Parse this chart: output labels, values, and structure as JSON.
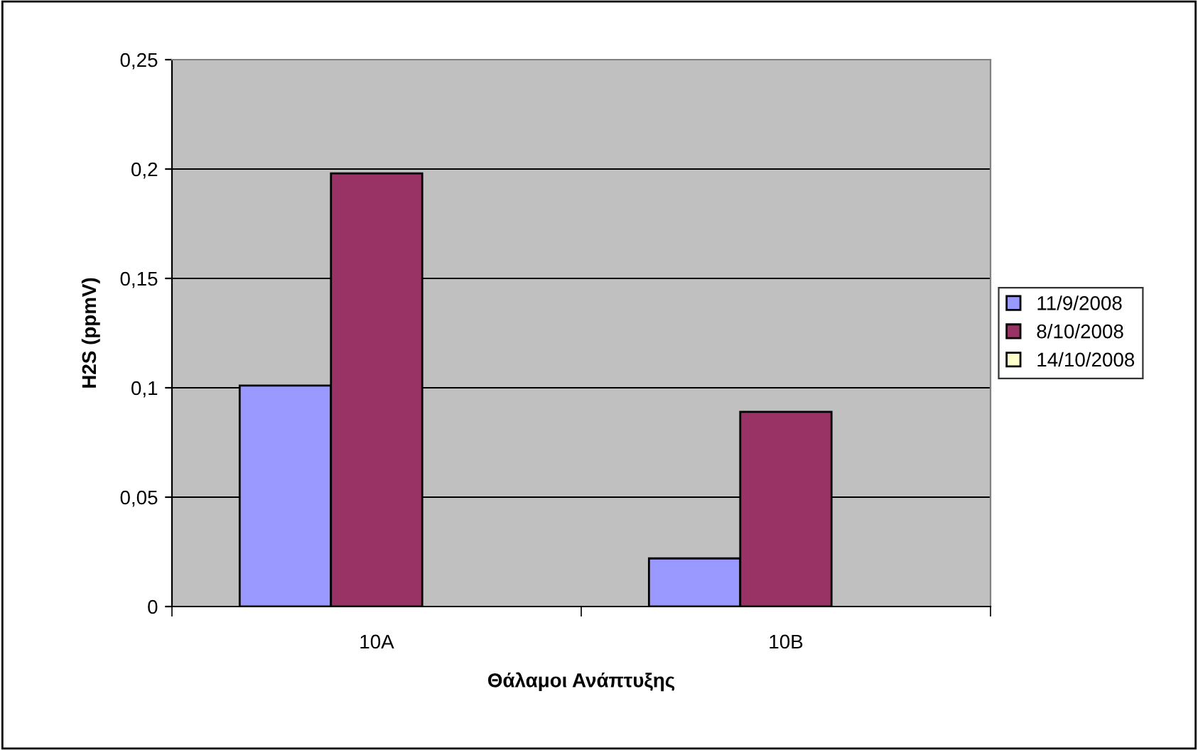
{
  "chart_data": {
    "type": "bar",
    "xlabel": "Θάλαμοι Ανάπτυξης",
    "ylabel": "H2S (ppmV)",
    "categories": [
      "10A",
      "10B"
    ],
    "series": [
      {
        "name": "11/9/2008",
        "color": "#9999ff",
        "values": [
          0.101,
          0.022
        ]
      },
      {
        "name": "8/10/2008",
        "color": "#993366",
        "values": [
          0.198,
          0.089
        ]
      },
      {
        "name": "14/10/2008",
        "color": "#ffffcc",
        "values": [
          null,
          null
        ]
      }
    ],
    "ylim": [
      0,
      0.25
    ],
    "yticks": [
      {
        "value": 0,
        "label": "0"
      },
      {
        "value": 0.05,
        "label": "0,05"
      },
      {
        "value": 0.1,
        "label": "0,1"
      },
      {
        "value": 0.15,
        "label": "0,15"
      },
      {
        "value": 0.2,
        "label": "0,2"
      },
      {
        "value": 0.25,
        "label": "0,25"
      }
    ],
    "grid": "y",
    "legend": "right"
  }
}
